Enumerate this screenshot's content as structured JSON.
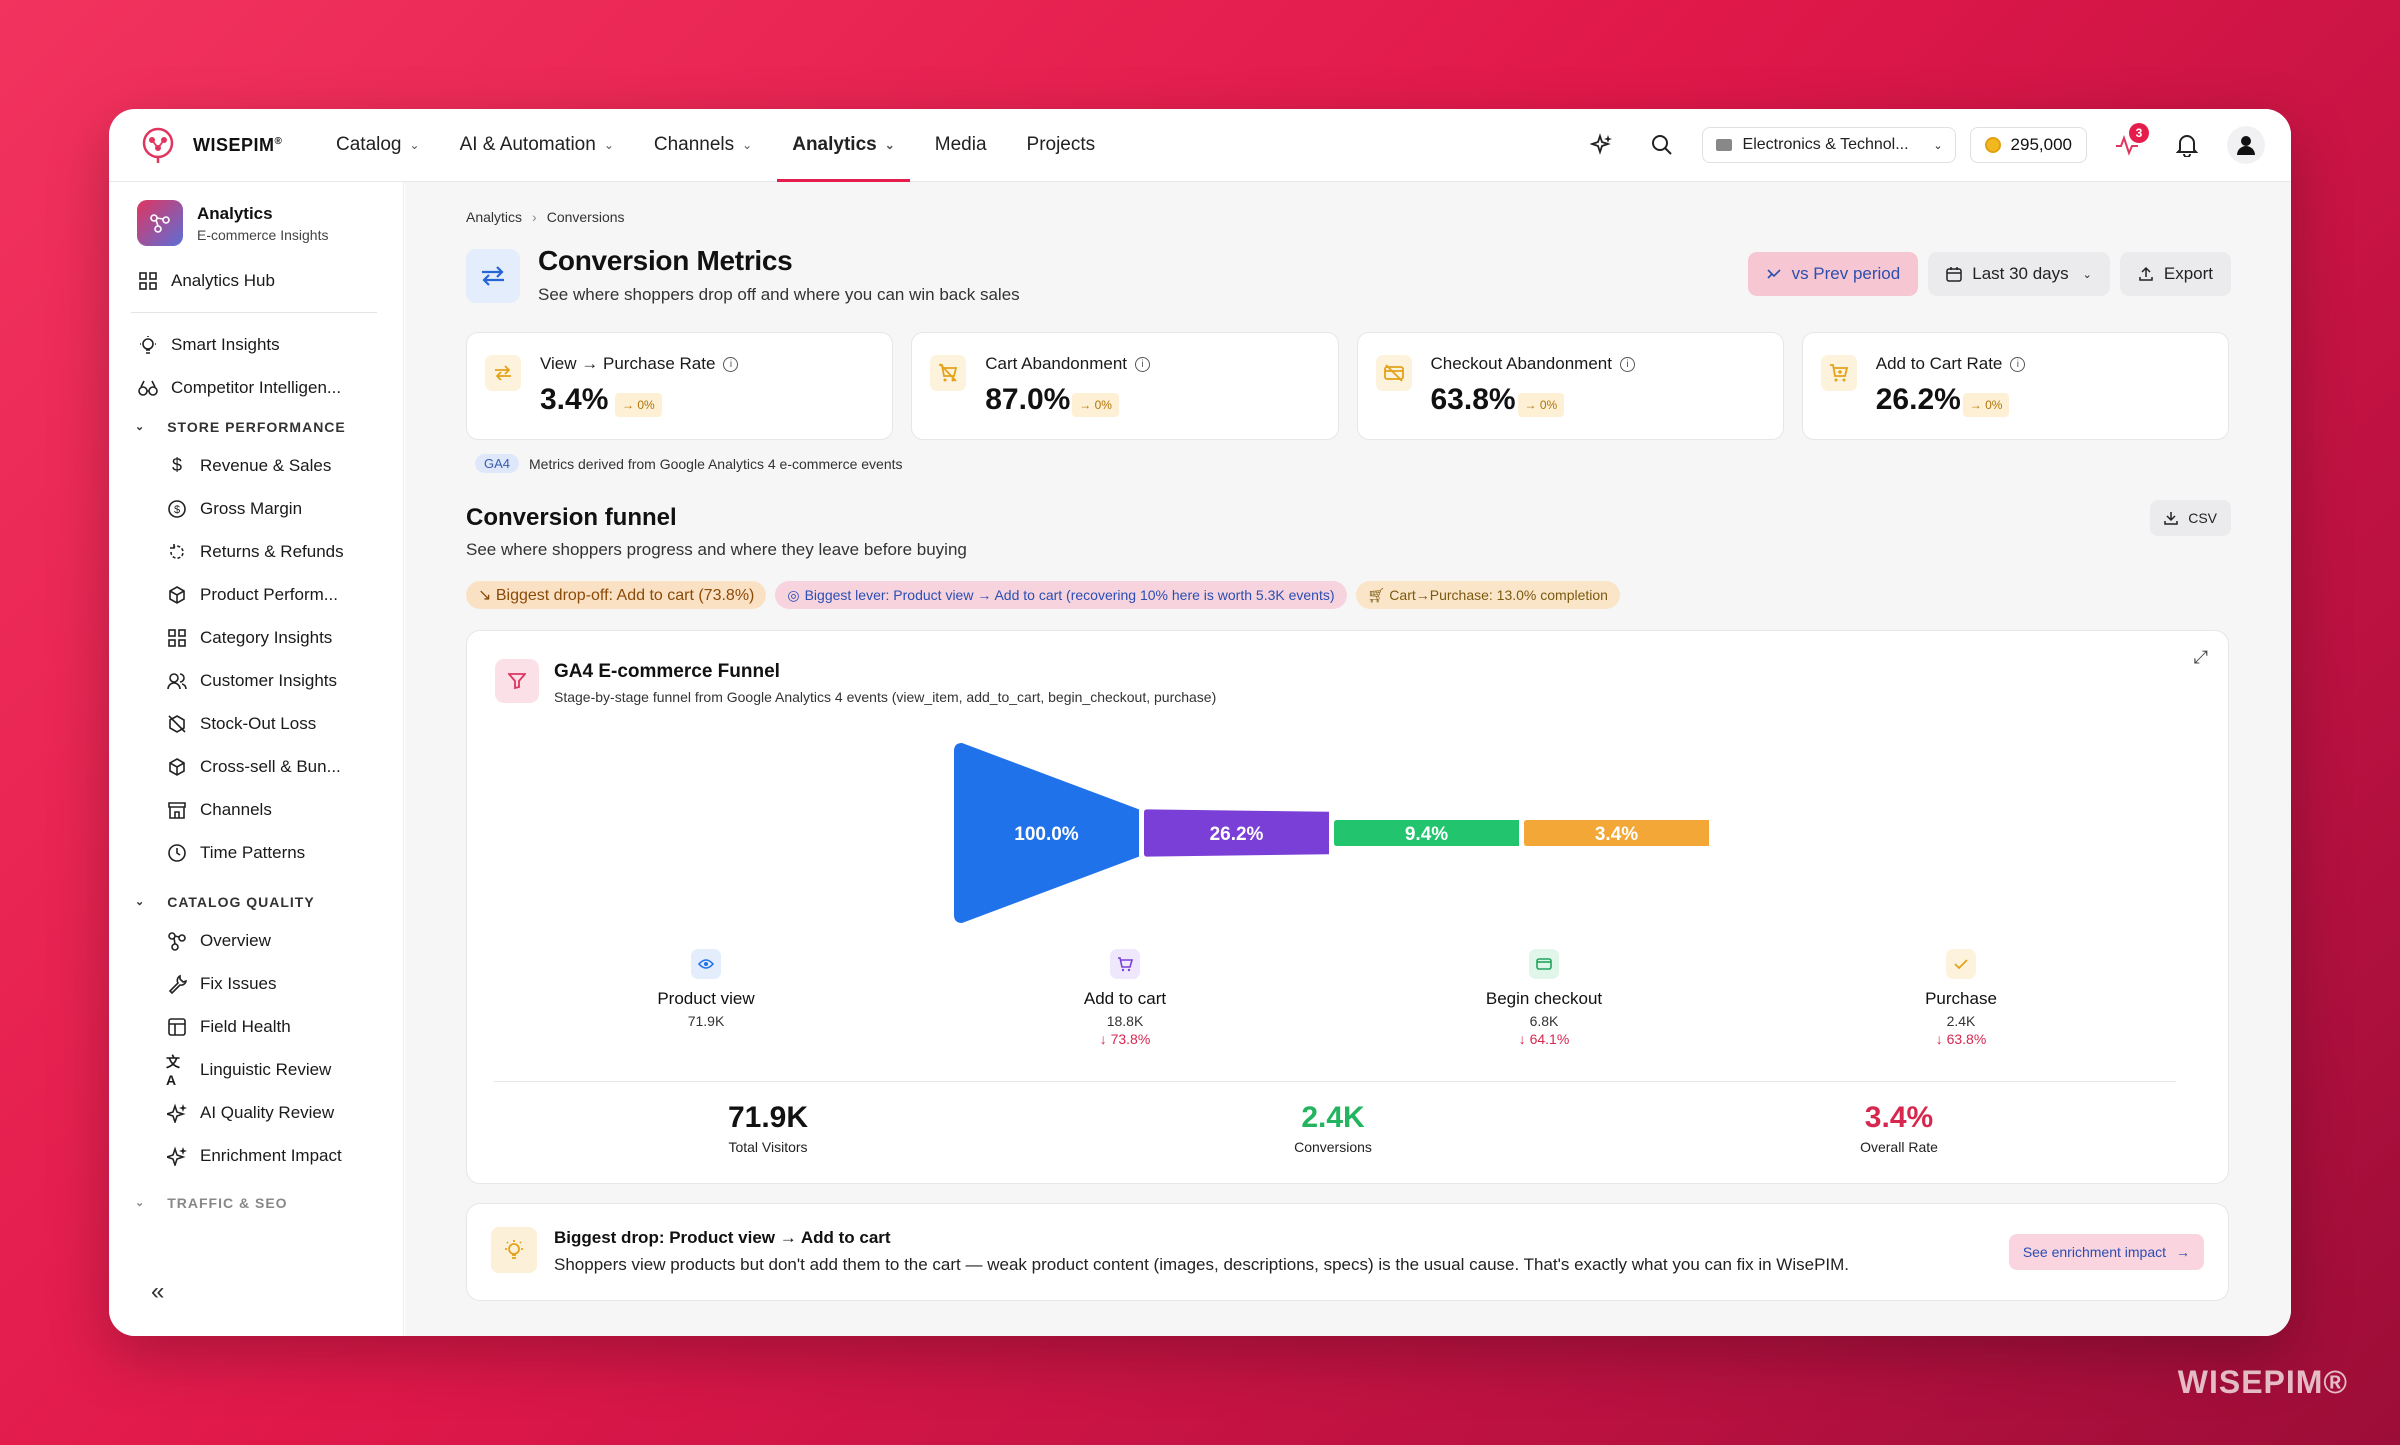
{
  "app": {
    "name": "WISEPIM",
    "trademark": "®"
  },
  "nav": {
    "items": [
      {
        "label": "Catalog",
        "dropdown": true
      },
      {
        "label": "AI & Automation",
        "dropdown": true
      },
      {
        "label": "Channels",
        "dropdown": true
      },
      {
        "label": "Analytics",
        "dropdown": true,
        "active": true
      },
      {
        "label": "Media",
        "dropdown": false
      },
      {
        "label": "Projects",
        "dropdown": false
      }
    ]
  },
  "header": {
    "store": "Electronics & Technol...",
    "credits": "295,000",
    "activity_badge": "3"
  },
  "sidebar": {
    "title": "Analytics",
    "subtitle": "E-commerce Insights",
    "hub": "Analytics Hub",
    "top_items": [
      "Smart Insights",
      "Competitor Intelligen..."
    ],
    "sections": [
      {
        "label": "STORE PERFORMANCE",
        "items": [
          "Revenue & Sales",
          "Gross Margin",
          "Returns & Refunds",
          "Product Perform...",
          "Category Insights",
          "Customer Insights",
          "Stock-Out Loss",
          "Cross-sell & Bun...",
          "Channels",
          "Time Patterns"
        ]
      },
      {
        "label": "CATALOG QUALITY",
        "items": [
          "Overview",
          "Fix Issues",
          "Field Health",
          "Linguistic Review",
          "AI Quality Review",
          "Enrichment Impact"
        ]
      },
      {
        "label": "TRAFFIC & SEO",
        "items": []
      }
    ],
    "collapse_label": "«"
  },
  "breadcrumb": [
    "Analytics",
    "Conversions"
  ],
  "page": {
    "title": "Conversion Metrics",
    "subtitle": "See where shoppers drop off and where you can win back sales",
    "compare_button": "vs Prev period",
    "range_button": "Last 30 days",
    "export_button": "Export"
  },
  "kpis": [
    {
      "label": "View → Purchase Rate",
      "value": "3.4%",
      "change": "→ 0%"
    },
    {
      "label": "Cart Abandonment",
      "value": "87.0%",
      "change": "→ 0%"
    },
    {
      "label": "Checkout Abandonment",
      "value": "63.8%",
      "change": "→ 0%"
    },
    {
      "label": "Add to Cart Rate",
      "value": "26.2%",
      "change": "→ 0%"
    }
  ],
  "ga_note": {
    "tag": "GA4",
    "text": "Metrics derived from Google Analytics 4 e-commerce events"
  },
  "funnel_section": {
    "title": "Conversion funnel",
    "subtitle": "See where shoppers progress and where they leave before buying",
    "csv_button": "CSV",
    "pills": [
      "↘ Biggest drop-off: Add to cart (73.8%)",
      "Biggest lever: Product view → Add to cart (recovering 10% here is worth 5.3K events)",
      "Cart→Purchase: 13.0% completion"
    ]
  },
  "funnel_card": {
    "title": "GA4 E-commerce Funnel",
    "subtitle": "Stage-by-stage funnel from Google Analytics 4 events (view_item, add_to_cart, begin_checkout, purchase)",
    "stages": [
      {
        "name": "Product view",
        "count": "71.9K",
        "drop": "",
        "pct_label": "100.0%",
        "pct": 100.0,
        "color": "#1f72ea"
      },
      {
        "name": "Add to cart",
        "count": "18.8K",
        "drop": "↓ 73.8%",
        "pct_label": "26.2%",
        "pct": 26.2,
        "color": "#7a3fd6"
      },
      {
        "name": "Begin checkout",
        "count": "6.8K",
        "drop": "↓ 64.1%",
        "pct_label": "9.4%",
        "pct": 9.4,
        "color": "#22c46e"
      },
      {
        "name": "Purchase",
        "count": "2.4K",
        "drop": "↓ 63.8%",
        "pct_label": "3.4%",
        "pct": 3.4,
        "color": "#f2a737"
      }
    ],
    "totals": [
      {
        "value": "71.9K",
        "label": "Total Visitors",
        "color": "#111111"
      },
      {
        "value": "2.4K",
        "label": "Conversions",
        "color": "#22b45e"
      },
      {
        "value": "3.4%",
        "label": "Overall Rate",
        "color": "#d6274e"
      }
    ]
  },
  "insight": {
    "title": "Biggest drop: Product view → Add to cart",
    "text": "Shoppers view products but don't add them to the cart — weak product content (images, descriptions, specs) is the usual cause. That's exactly what you can fix in WisePIM.",
    "button": "See enrichment impact"
  },
  "watermark": "WISEPIM®"
}
